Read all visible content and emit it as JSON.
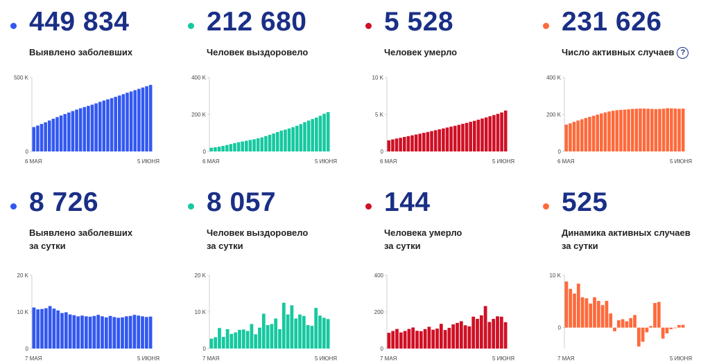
{
  "colors": {
    "blue": "#3358f0",
    "teal": "#16c8a0",
    "red": "#cf1025",
    "orange": "#fd6a3c"
  },
  "cards": [
    {
      "value": "449 834",
      "label_lines": [
        "Выявлено заболевших"
      ],
      "help": "",
      "color": "#3358f0"
    },
    {
      "value": "212 680",
      "label_lines": [
        "Человек выздоровело"
      ],
      "help": "",
      "color": "#16c8a0"
    },
    {
      "value": "5 528",
      "label_lines": [
        "Человек умерло"
      ],
      "help": "",
      "color": "#cf1025"
    },
    {
      "value": "231 626",
      "label_lines": [
        "Число активных случаев"
      ],
      "help": "?",
      "color": "#fd6a3c"
    },
    {
      "value": "8 726",
      "label_lines": [
        "Выявлено заболевших",
        "за сутки"
      ],
      "help": "",
      "color": "#3358f0"
    },
    {
      "value": "8 057",
      "label_lines": [
        "Человек выздоровело",
        "за сутки"
      ],
      "help": "",
      "color": "#16c8a0"
    },
    {
      "value": "144",
      "label_lines": [
        "Человека умерло",
        "за сутки"
      ],
      "help": "",
      "color": "#cf1025"
    },
    {
      "value": "525",
      "label_lines": [
        "Динамика активных случаев",
        "за сутки"
      ],
      "help": "",
      "color": "#fd6a3c"
    }
  ],
  "chart_data": [
    {
      "type": "bar",
      "ylim": [
        0,
        500000
      ],
      "ytick_values": [
        0,
        500000
      ],
      "ytick_labels": [
        "0",
        "500 K"
      ],
      "x_start": "6 МАЯ",
      "x_end": "5 ИЮНЯ",
      "values": [
        165000,
        175000,
        186000,
        197000,
        209000,
        221000,
        232000,
        243000,
        253000,
        263000,
        273000,
        283000,
        292000,
        300000,
        308000,
        316000,
        325000,
        335000,
        344000,
        352000,
        360000,
        369000,
        378000,
        387000,
        397000,
        405000,
        414000,
        423000,
        432000,
        441000,
        449834
      ]
    },
    {
      "type": "bar",
      "ylim": [
        0,
        400000
      ],
      "ytick_values": [
        0,
        200000,
        400000
      ],
      "ytick_labels": [
        "0",
        "200 K",
        "400 K"
      ],
      "x_start": "6 МАЯ",
      "x_end": "5 ИЮНЯ",
      "values": [
        20000,
        23000,
        26000,
        30000,
        35000,
        40000,
        45000,
        50000,
        54000,
        58000,
        62000,
        66000,
        71000,
        76000,
        83000,
        90000,
        97000,
        105000,
        113000,
        118000,
        124000,
        131000,
        139000,
        148000,
        158000,
        167000,
        175000,
        183000,
        193000,
        204000,
        212680
      ]
    },
    {
      "type": "bar",
      "ylim": [
        0,
        10000
      ],
      "ytick_values": [
        0,
        5000,
        10000
      ],
      "ytick_labels": [
        "0",
        "5 K",
        "10 K"
      ],
      "x_start": "6 МАЯ",
      "x_end": "5 ИЮНЯ",
      "values": [
        1500,
        1630,
        1750,
        1850,
        1960,
        2070,
        2180,
        2290,
        2400,
        2520,
        2630,
        2750,
        2870,
        2990,
        3110,
        3230,
        3350,
        3470,
        3600,
        3730,
        3860,
        4000,
        4140,
        4290,
        4450,
        4600,
        4760,
        4920,
        5080,
        5270,
        5528
      ]
    },
    {
      "type": "bar",
      "ylim": [
        0,
        400000
      ],
      "ytick_values": [
        0,
        200000,
        400000
      ],
      "ytick_labels": [
        "0",
        "200 K",
        "400 K"
      ],
      "x_start": "6 МАЯ",
      "x_end": "5 ИЮНЯ",
      "values": [
        145000,
        152000,
        160000,
        167000,
        174000,
        181000,
        187000,
        193000,
        199000,
        205000,
        211000,
        216000,
        220000,
        223000,
        225000,
        226000,
        228000,
        230000,
        231000,
        232000,
        232000,
        231000,
        230000,
        229000,
        230000,
        231000,
        234000,
        233000,
        232000,
        231000,
        231626
      ]
    },
    {
      "type": "bar",
      "ylim": [
        0,
        20000
      ],
      "ytick_values": [
        0,
        10000,
        20000
      ],
      "ytick_labels": [
        "0",
        "10 K",
        "20 K"
      ],
      "x_start": "7 МАЯ",
      "x_end": "5 ИЮНЯ",
      "values": [
        11200,
        10700,
        10800,
        11000,
        11600,
        10900,
        10400,
        9700,
        9900,
        9300,
        9100,
        8800,
        9000,
        8800,
        8700,
        8900,
        9200,
        8800,
        8500,
        8900,
        8600,
        8400,
        8500,
        8800,
        8900,
        9200,
        9000,
        8800,
        8600,
        8726
      ]
    },
    {
      "type": "bar",
      "ylim": [
        0,
        20000
      ],
      "ytick_values": [
        0,
        10000,
        20000
      ],
      "ytick_labels": [
        "0",
        "10 K",
        "20 K"
      ],
      "x_start": "7 МАЯ",
      "x_end": "5 ИЮНЯ",
      "values": [
        2700,
        3100,
        5600,
        3200,
        5300,
        4000,
        4400,
        5100,
        5200,
        4800,
        6700,
        3900,
        5700,
        9500,
        6400,
        6700,
        8200,
        5300,
        12500,
        9300,
        11800,
        8200,
        9300,
        8900,
        6400,
        6200,
        11100,
        9000,
        8400,
        8057
      ]
    },
    {
      "type": "bar",
      "ylim": [
        0,
        400
      ],
      "ytick_values": [
        0,
        200,
        400
      ],
      "ytick_labels": [
        "0",
        "200",
        "400"
      ],
      "x_start": "7 МАЯ",
      "x_end": "5 ИЮНЯ",
      "values": [
        86,
        96,
        107,
        88,
        96,
        107,
        115,
        97,
        95,
        106,
        119,
        103,
        109,
        135,
        101,
        113,
        132,
        140,
        149,
        127,
        121,
        174,
        162,
        181,
        232,
        145,
        162,
        176,
        174,
        144
      ]
    },
    {
      "type": "bar",
      "ylim": [
        -4000,
        10000
      ],
      "ytick_values": [
        0,
        10000
      ],
      "ytick_labels": [
        "0",
        "10 K"
      ],
      "x_start": "7 МАЯ",
      "x_end": "5 ИЮНЯ",
      "values": [
        8800,
        7400,
        6500,
        8400,
        5800,
        5600,
        4600,
        5800,
        5100,
        4300,
        5100,
        2700,
        -700,
        1400,
        1600,
        1200,
        1800,
        2400,
        -3600,
        -2700,
        -900,
        300,
        4700,
        4900,
        -2100,
        -1100,
        -300,
        -100,
        500,
        525
      ]
    }
  ]
}
